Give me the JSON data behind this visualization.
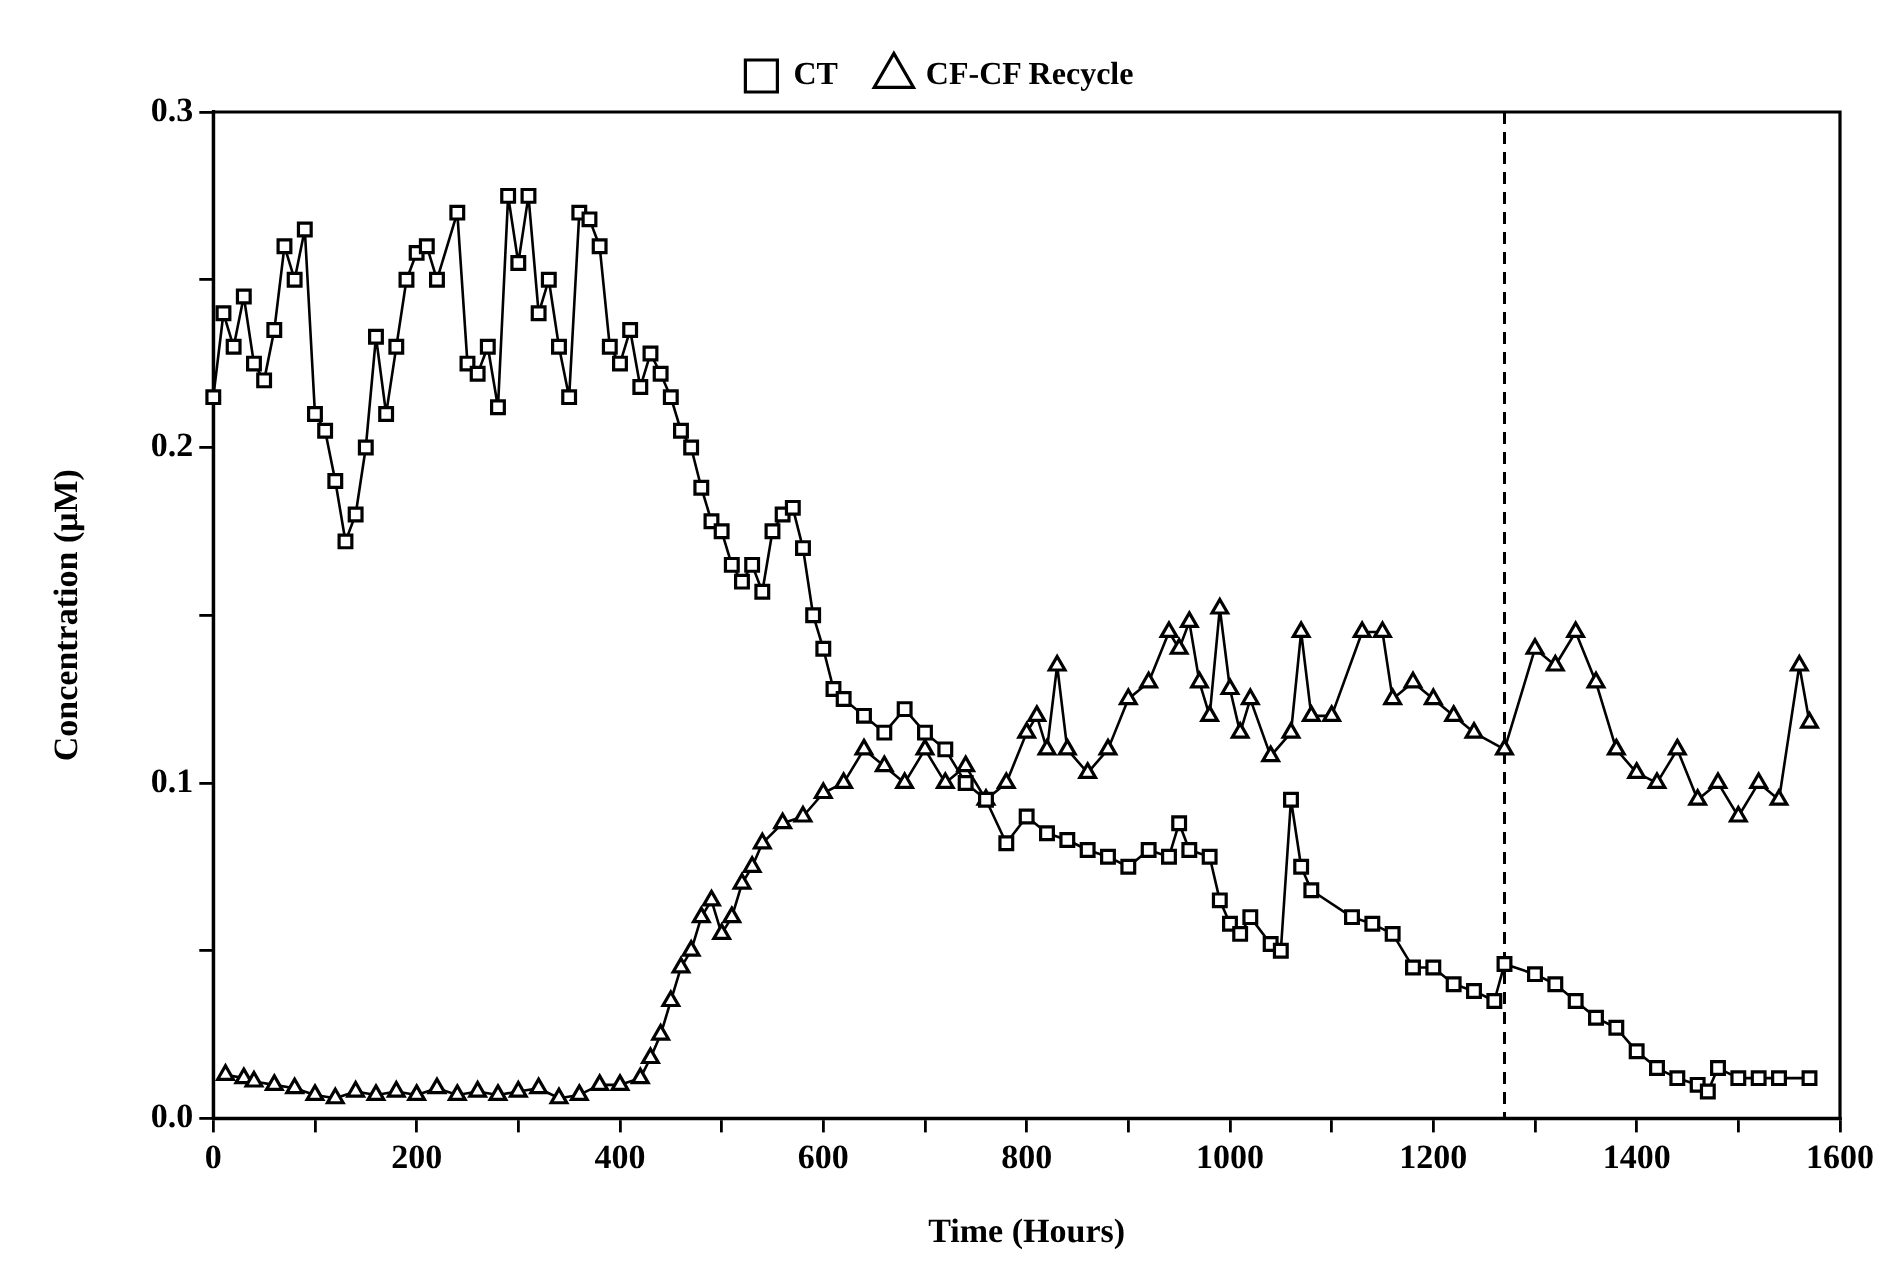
{
  "chart_data": {
    "type": "line",
    "xlabel": "Time (Hours)",
    "ylabel": "Concentration (μM)",
    "xlim": [
      0,
      1600
    ],
    "ylim": [
      0,
      0.3
    ],
    "xticks": [
      0,
      {
        "value": 100,
        "label": null
      },
      200,
      {
        "value": 300,
        "label": null
      },
      400,
      {
        "value": 500,
        "label": null
      },
      600,
      {
        "value": 700,
        "label": null
      },
      800,
      {
        "value": 900,
        "label": null
      },
      1000,
      {
        "value": 1100,
        "label": null
      },
      1200,
      {
        "value": 1300,
        "label": null
      },
      1400,
      {
        "value": 1500,
        "label": null
      },
      1600
    ],
    "yticks": [
      {
        "value": 0,
        "label": "0.0"
      },
      {
        "value": 0.05,
        "label": null
      },
      {
        "value": 0.1,
        "label": "0.1"
      },
      {
        "value": 0.15,
        "label": null
      },
      {
        "value": 0.2,
        "label": "0.2"
      },
      {
        "value": 0.25,
        "label": null
      },
      {
        "value": 0.3,
        "label": "0.3"
      }
    ],
    "grid": false,
    "legend": "top",
    "line_style": "solid",
    "ref_lines": [
      {
        "axis": "x",
        "value": 1270,
        "line_style": "dashed",
        "color": "#000000"
      }
    ],
    "series": [
      {
        "name": "CT",
        "color": "#000000",
        "marker": "square",
        "x": [
          0,
          10,
          20,
          30,
          40,
          50,
          60,
          70,
          80,
          90,
          100,
          110,
          120,
          130,
          140,
          150,
          160,
          170,
          180,
          190,
          200,
          210,
          220,
          240,
          250,
          260,
          270,
          280,
          290,
          300,
          310,
          320,
          330,
          340,
          350,
          360,
          370,
          380,
          390,
          400,
          410,
          420,
          430,
          440,
          450,
          460,
          470,
          480,
          490,
          500,
          510,
          520,
          530,
          540,
          550,
          560,
          570,
          580,
          590,
          600,
          610,
          620,
          640,
          660,
          680,
          700,
          720,
          740,
          760,
          780,
          800,
          820,
          840,
          860,
          880,
          900,
          920,
          940,
          950,
          960,
          980,
          990,
          1000,
          1010,
          1020,
          1040,
          1050,
          1060,
          1070,
          1080,
          1120,
          1140,
          1160,
          1180,
          1200,
          1220,
          1240,
          1260,
          1270,
          1300,
          1320,
          1340,
          1360,
          1380,
          1400,
          1420,
          1440,
          1460,
          1470,
          1480,
          1500,
          1520,
          1540,
          1570
        ],
        "values": [
          0.215,
          0.24,
          0.23,
          0.245,
          0.225,
          0.22,
          0.235,
          0.26,
          0.25,
          0.265,
          0.21,
          0.205,
          0.19,
          0.172,
          0.18,
          0.2,
          0.233,
          0.21,
          0.23,
          0.25,
          0.258,
          0.26,
          0.25,
          0.27,
          0.225,
          0.222,
          0.23,
          0.212,
          0.275,
          0.255,
          0.275,
          0.24,
          0.25,
          0.23,
          0.215,
          0.27,
          0.268,
          0.26,
          0.23,
          0.225,
          0.235,
          0.218,
          0.228,
          0.222,
          0.215,
          0.205,
          0.2,
          0.188,
          0.178,
          0.175,
          0.165,
          0.16,
          0.165,
          0.157,
          0.175,
          0.18,
          0.182,
          0.17,
          0.15,
          0.14,
          0.128,
          0.125,
          0.12,
          0.115,
          0.122,
          0.115,
          0.11,
          0.1,
          0.095,
          0.082,
          0.09,
          0.085,
          0.083,
          0.08,
          0.078,
          0.075,
          0.08,
          0.078,
          0.088,
          0.08,
          0.078,
          0.065,
          0.058,
          0.055,
          0.06,
          0.052,
          0.05,
          0.095,
          0.075,
          0.068,
          0.06,
          0.058,
          0.055,
          0.045,
          0.045,
          0.04,
          0.038,
          0.035,
          0.046,
          0.043,
          0.04,
          0.035,
          0.03,
          0.027,
          0.02,
          0.015,
          0.012,
          0.01,
          0.008,
          0.015,
          0.012,
          0.012,
          0.012,
          0.012
        ]
      },
      {
        "name": "CF-CF Recycle",
        "color": "#000000",
        "marker": "triangle",
        "x": [
          12,
          30,
          40,
          60,
          80,
          100,
          120,
          140,
          160,
          180,
          200,
          220,
          240,
          260,
          280,
          300,
          320,
          340,
          360,
          380,
          400,
          420,
          430,
          440,
          450,
          460,
          470,
          480,
          490,
          500,
          510,
          520,
          530,
          540,
          560,
          580,
          600,
          620,
          640,
          660,
          680,
          700,
          720,
          740,
          760,
          780,
          800,
          810,
          820,
          830,
          840,
          860,
          880,
          900,
          920,
          940,
          950,
          960,
          970,
          980,
          990,
          1000,
          1010,
          1020,
          1040,
          1060,
          1070,
          1080,
          1100,
          1130,
          1150,
          1160,
          1180,
          1200,
          1220,
          1240,
          1270,
          1300,
          1320,
          1340,
          1360,
          1380,
          1400,
          1420,
          1440,
          1460,
          1480,
          1500,
          1520,
          1540,
          1560,
          1570
        ],
        "values": [
          0.013,
          0.012,
          0.011,
          0.01,
          0.009,
          0.007,
          0.006,
          0.008,
          0.007,
          0.008,
          0.007,
          0.009,
          0.007,
          0.008,
          0.007,
          0.008,
          0.009,
          0.006,
          0.007,
          0.01,
          0.01,
          0.012,
          0.018,
          0.025,
          0.035,
          0.045,
          0.05,
          0.06,
          0.065,
          0.055,
          0.06,
          0.07,
          0.075,
          0.082,
          0.088,
          0.09,
          0.097,
          0.1,
          0.11,
          0.105,
          0.1,
          0.11,
          0.1,
          0.105,
          0.095,
          0.1,
          0.115,
          0.12,
          0.11,
          0.135,
          0.11,
          0.103,
          0.11,
          0.125,
          0.13,
          0.145,
          0.14,
          0.148,
          0.13,
          0.12,
          0.152,
          0.128,
          0.115,
          0.125,
          0.108,
          0.115,
          0.145,
          0.12,
          0.12,
          0.145,
          0.145,
          0.125,
          0.13,
          0.125,
          0.12,
          0.115,
          0.11,
          0.14,
          0.135,
          0.145,
          0.13,
          0.11,
          0.103,
          0.1,
          0.11,
          0.095,
          0.1,
          0.09,
          0.1,
          0.095,
          0.135,
          0.118
        ]
      }
    ]
  }
}
